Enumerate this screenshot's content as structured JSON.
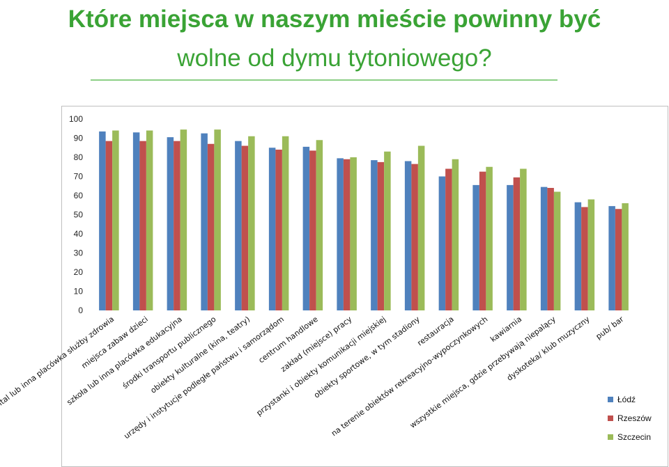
{
  "title": {
    "line1": "Które miejsca w naszym mieście powinny być",
    "line2": "wolne od dymu tytoniowego?"
  },
  "chart_data": {
    "type": "bar",
    "title": "Które miejsca w naszym mieście powinny być wolne od dymu tytoniowego?",
    "xlabel": "",
    "ylabel": "",
    "ylim": [
      0,
      100
    ],
    "yticks": [
      "0",
      "10",
      "20",
      "30",
      "40",
      "50",
      "60",
      "70",
      "80",
      "90",
      "100"
    ],
    "grid": false,
    "legend_position": "bottom-right",
    "categories": [
      "szpital lub inna placówka służby zdrowia",
      "miejsca zabaw dzieci",
      "szkoła lub inna placówka edukacyjna",
      "środki transportu publicznego",
      "obiekty kulturalne (kina, teatry)",
      "urzędy i instytucje podległe państwu i samorządom",
      "centrum handlowe",
      "zakład (miejsce) pracy",
      "przystanki i obiekty komunikacji miejskiej",
      "obiekty sportowe, w tym stadiony",
      "restauracja",
      "na terenie obiektów rekreacyjno-wypoczynkowych",
      "kawiarnia",
      "wszystkie miejsca, gdzie przebywają niepalący",
      "dyskoteka/ klub muzyczny",
      "pub/ bar"
    ],
    "series": [
      {
        "name": "Łódź",
        "color": "#4f81bd",
        "values": [
          93.5,
          93,
          90.5,
          92.5,
          88.5,
          85,
          85.5,
          79.5,
          78.5,
          78,
          70,
          65.5,
          65.5,
          64.5,
          56.5,
          54.5
        ]
      },
      {
        "name": "Rzeszów",
        "color": "#c0504d",
        "values": [
          88.5,
          88.5,
          88.5,
          87,
          86,
          84,
          83.5,
          79,
          77.5,
          76.5,
          74,
          72.5,
          69.5,
          64,
          54,
          53
        ]
      },
      {
        "name": "Szczecin",
        "color": "#9bbb59",
        "values": [
          94,
          94,
          94.5,
          94.5,
          91,
          91,
          89,
          80,
          83,
          86,
          79,
          75,
          74,
          62,
          58,
          56
        ]
      }
    ]
  }
}
